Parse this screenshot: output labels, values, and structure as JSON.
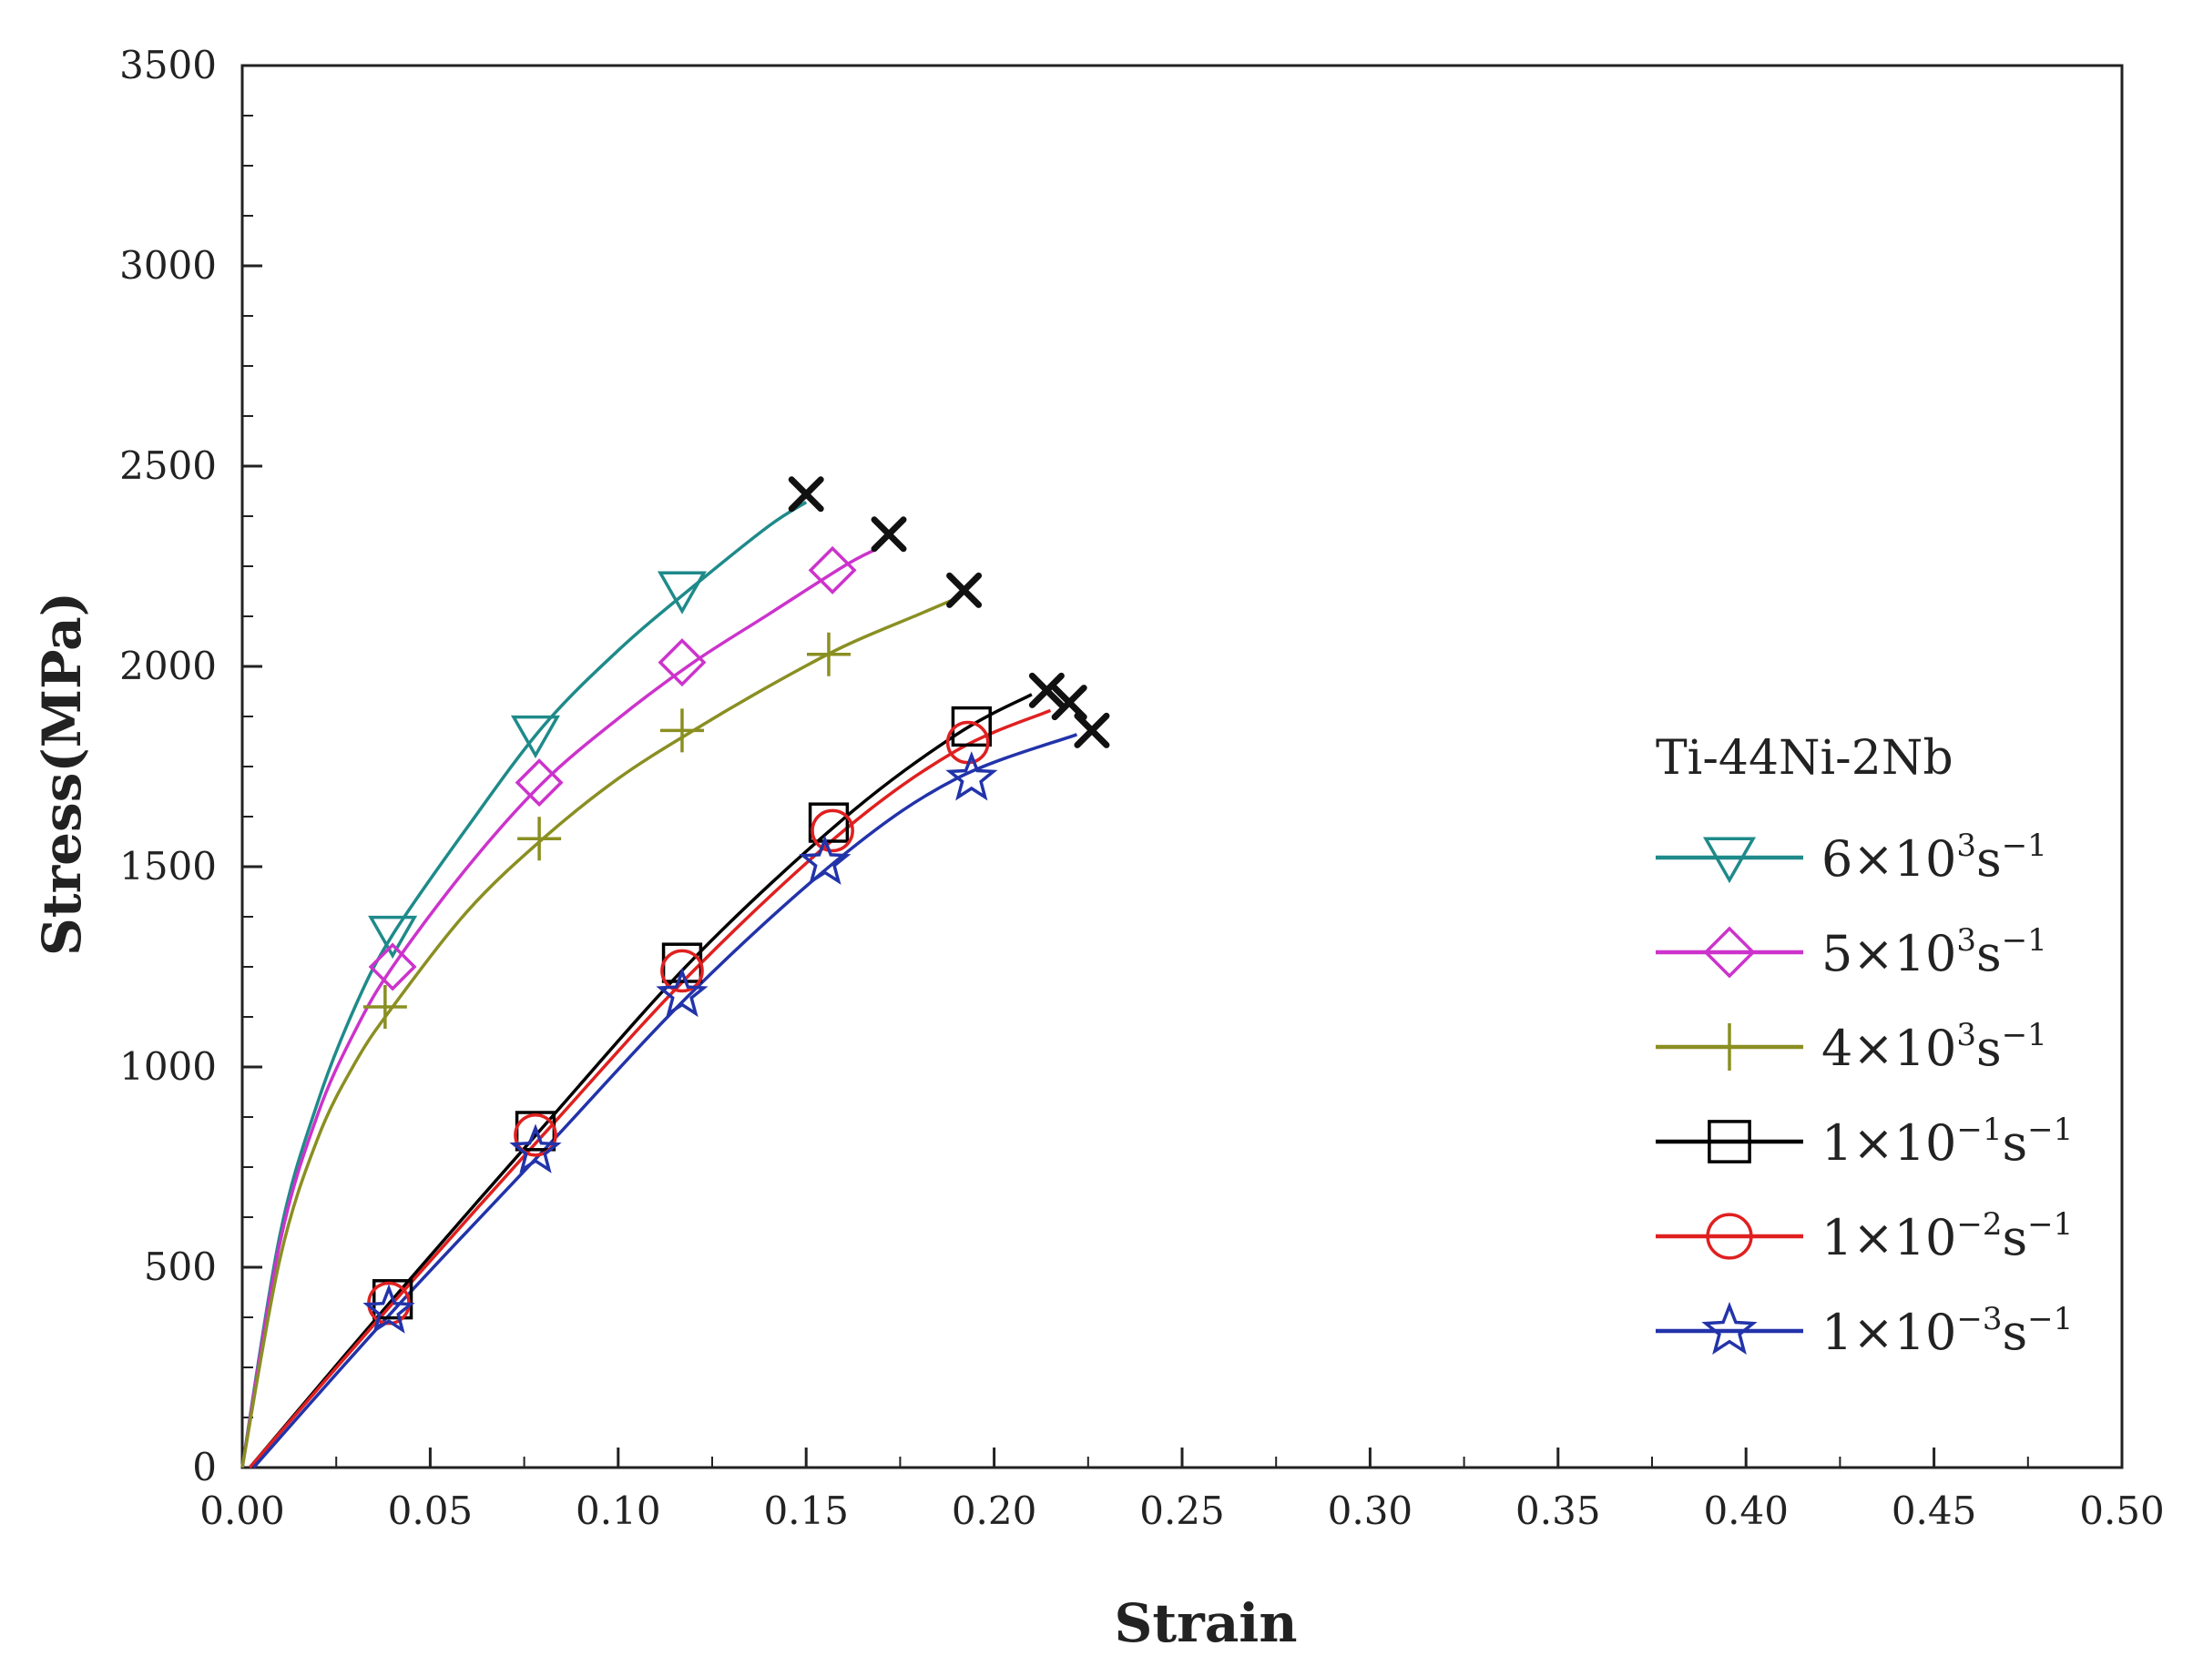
{
  "chart_data": {
    "type": "line",
    "title": "",
    "xlabel": "Strain",
    "ylabel": "Stress(MPa)",
    "xlim": [
      0.0,
      0.5
    ],
    "ylim": [
      0,
      3500
    ],
    "x_ticks": [
      "0.00",
      "0.05",
      "0.10",
      "0.15",
      "0.20",
      "0.25",
      "0.30",
      "0.35",
      "0.40",
      "0.45",
      "0.50"
    ],
    "y_ticks": [
      "0",
      "500",
      "1000",
      "1500",
      "2000",
      "2500",
      "3000",
      "3500"
    ],
    "grid": false,
    "legend_position": "right",
    "legend_title": "Ti-44Ni-2Nb",
    "failure_marker": "x",
    "series": [
      {
        "name": "6×10^3 s^-1",
        "base": "6×10",
        "exp1": "3",
        "unit": "s",
        "exp2": "−1",
        "color": "#1f8a8a",
        "marker": "triangle-down",
        "x": [
          0.0,
          0.01,
          0.02,
          0.03,
          0.04,
          0.06,
          0.08,
          0.1,
          0.12,
          0.14,
          0.15
        ],
        "y": [
          0,
          580,
          910,
          1150,
          1330,
          1600,
          1850,
          2040,
          2200,
          2350,
          2410
        ],
        "marker_x": [
          0.04,
          0.078,
          0.117
        ],
        "marker_y": [
          1330,
          1830,
          2190
        ],
        "failure": [
          0.15,
          2430
        ]
      },
      {
        "name": "5×10^3 s^-1",
        "base": "5×10",
        "exp1": "3",
        "unit": "s",
        "exp2": "−1",
        "color": "#cc33cc",
        "marker": "diamond",
        "x": [
          0.0,
          0.01,
          0.02,
          0.03,
          0.04,
          0.06,
          0.08,
          0.1,
          0.12,
          0.14,
          0.16,
          0.168
        ],
        "y": [
          0,
          560,
          880,
          1090,
          1250,
          1500,
          1710,
          1870,
          2010,
          2130,
          2250,
          2290
        ],
        "marker_x": [
          0.04,
          0.079,
          0.117,
          0.157
        ],
        "marker_y": [
          1250,
          1710,
          2010,
          2240
        ],
        "failure": [
          0.172,
          2330
        ]
      },
      {
        "name": "4×10^3 s^-1",
        "base": "4×10",
        "exp1": "3",
        "unit": "s",
        "exp2": "−1",
        "color": "#8a8f22",
        "marker": "plus",
        "x": [
          0.0,
          0.01,
          0.02,
          0.03,
          0.04,
          0.06,
          0.08,
          0.1,
          0.12,
          0.14,
          0.16,
          0.18,
          0.19
        ],
        "y": [
          0,
          520,
          820,
          1010,
          1150,
          1390,
          1570,
          1720,
          1840,
          1950,
          2050,
          2130,
          2170
        ],
        "marker_x": [
          0.038,
          0.079,
          0.117,
          0.156
        ],
        "marker_y": [
          1150,
          1570,
          1840,
          2030
        ],
        "failure": [
          0.192,
          2190
        ]
      },
      {
        "name": "1×10^-1 s^-1",
        "base": "1×10",
        "exp1": "−1",
        "unit": "s",
        "exp2": "−1",
        "color": "#000000",
        "marker": "square",
        "x": [
          0.002,
          0.04,
          0.08,
          0.12,
          0.16,
          0.19,
          0.21
        ],
        "y": [
          0,
          420,
          850,
          1270,
          1620,
          1830,
          1930
        ],
        "marker_x": [
          0.04,
          0.078,
          0.117,
          0.156,
          0.194
        ],
        "marker_y": [
          420,
          840,
          1260,
          1610,
          1850
        ],
        "failure": [
          0.214,
          1940
        ]
      },
      {
        "name": "1×10^-2 s^-1",
        "base": "1×10",
        "exp1": "−2",
        "unit": "s",
        "exp2": "−1",
        "color": "#e02020",
        "marker": "circle",
        "x": [
          0.002,
          0.04,
          0.08,
          0.12,
          0.16,
          0.19,
          0.215
        ],
        "y": [
          0,
          410,
          830,
          1240,
          1590,
          1790,
          1890
        ],
        "marker_x": [
          0.039,
          0.078,
          0.117,
          0.157,
          0.193
        ],
        "marker_y": [
          410,
          830,
          1240,
          1590,
          1810
        ],
        "failure": [
          0.22,
          1910
        ]
      },
      {
        "name": "1×10^-3 s^-1",
        "base": "1×10",
        "exp1": "−3",
        "unit": "s",
        "exp2": "−1",
        "color": "#2233aa",
        "marker": "star",
        "x": [
          0.003,
          0.04,
          0.08,
          0.12,
          0.16,
          0.19,
          0.222
        ],
        "y": [
          0,
          390,
          790,
          1190,
          1530,
          1720,
          1830
        ],
        "marker_x": [
          0.039,
          0.078,
          0.117,
          0.155,
          0.194
        ],
        "marker_y": [
          390,
          790,
          1180,
          1510,
          1720
        ],
        "failure": [
          0.226,
          1840
        ]
      }
    ]
  }
}
